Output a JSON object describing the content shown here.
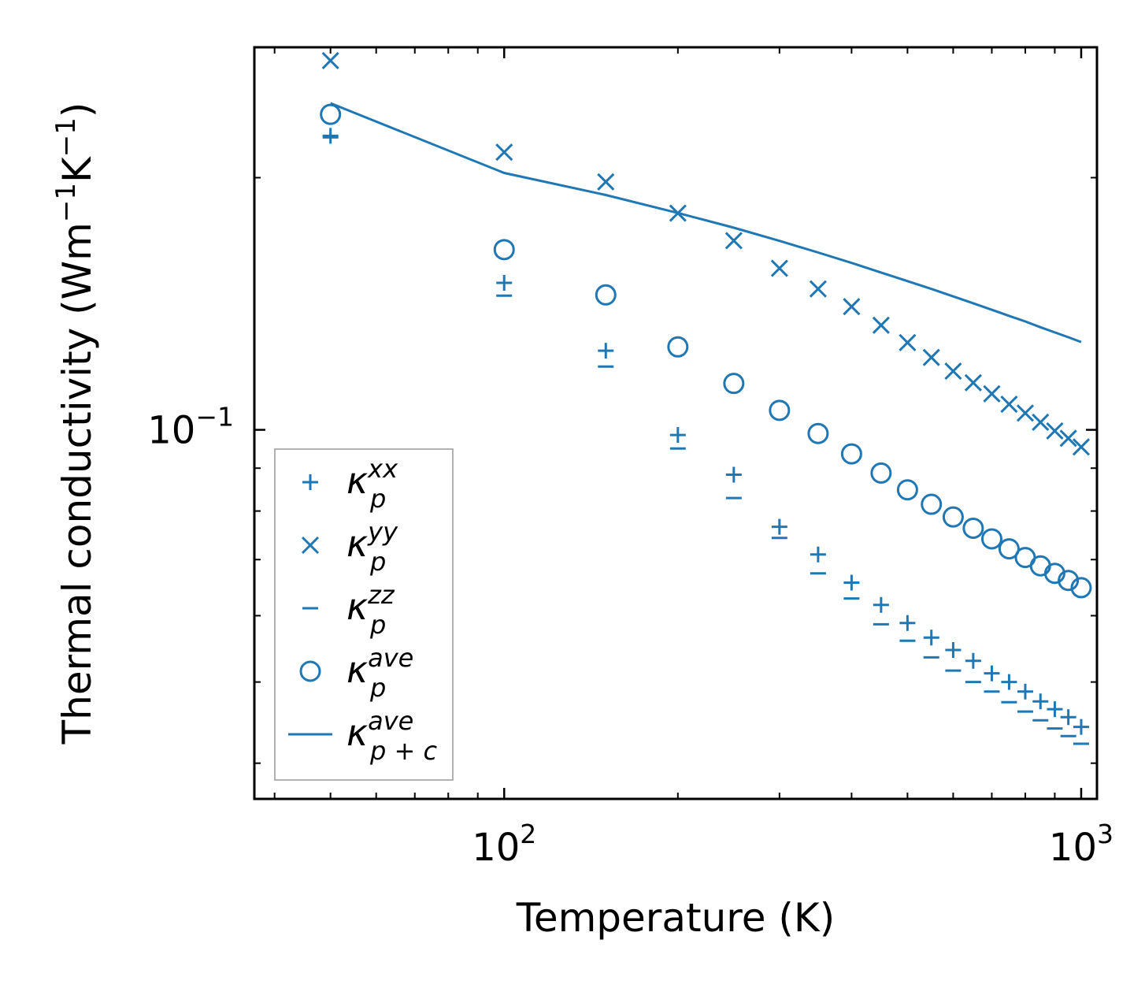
{
  "chart_data": {
    "type": "scatter",
    "title": "",
    "xlabel": "Temperature (K)",
    "ylabel_main": "Thermal conductivity (Wm",
    "ylabel_sup1": "−1",
    "ylabel_mid": "K",
    "ylabel_sup2": "−1",
    "ylabel_end": ")",
    "xscale": "log",
    "yscale": "log",
    "xlim": [
      36.9,
      1065
    ],
    "ylim": [
      0.03626,
      0.2862
    ],
    "xticks": [
      {
        "value": 100,
        "base": "10",
        "exp": "2"
      },
      {
        "value": 1000,
        "base": "10",
        "exp": "3"
      }
    ],
    "yticks": [
      {
        "value": 0.1,
        "base": "10",
        "exp": "−1"
      }
    ],
    "legend_position": "lower-left",
    "x": [
      50,
      100,
      150,
      200,
      250,
      300,
      350,
      400,
      450,
      500,
      550,
      600,
      650,
      700,
      750,
      800,
      850,
      900,
      950,
      1000
    ],
    "series": [
      {
        "name": "κ_p^xx",
        "label_base": "κ",
        "label_sub": "p",
        "label_sup": "xx",
        "marker": "plus",
        "color": "#1f77b4",
        "values": [
          0.2244,
          0.1498,
          0.1243,
          0.0986,
          0.0884,
          0.0766,
          0.071,
          0.0657,
          0.0618,
          0.0588,
          0.0565,
          0.0546,
          0.053,
          0.0512,
          0.05,
          0.0487,
          0.0474,
          0.0464,
          0.0454,
          0.0442
        ]
      },
      {
        "name": "κ_p^yy",
        "label_base": "κ",
        "label_sub": "p",
        "label_sup": "yy",
        "marker": "x",
        "color": "#1f77b4",
        "values": [
          0.2759,
          0.2145,
          0.1977,
          0.1814,
          0.1682,
          0.1559,
          0.1473,
          0.1403,
          0.1333,
          0.1271,
          0.122,
          0.1175,
          0.1138,
          0.1104,
          0.1073,
          0.1047,
          0.1021,
          0.0997,
          0.0977,
          0.0954
        ]
      },
      {
        "name": "κ_p^zz",
        "label_base": "κ",
        "label_sub": "p",
        "label_sup": "zz",
        "marker": "hline",
        "color": "#1f77b4",
        "values": [
          0.2234,
          0.1446,
          0.119,
          0.095,
          0.0829,
          0.0743,
          0.0674,
          0.0629,
          0.0586,
          0.056,
          0.0535,
          0.0516,
          0.05,
          0.0487,
          0.0473,
          0.0461,
          0.045,
          0.044,
          0.0431,
          0.0422
        ]
      },
      {
        "name": "κ_p^ave",
        "label_base": "κ",
        "label_sub": "p",
        "label_sup": "ave",
        "marker": "circle",
        "color": "#1f77b4",
        "values": [
          0.238,
          0.1641,
          0.1449,
          0.1256,
          0.1136,
          0.1055,
          0.099,
          0.0936,
          0.0888,
          0.0848,
          0.0815,
          0.0787,
          0.0763,
          0.0741,
          0.0721,
          0.0704,
          0.0688,
          0.0674,
          0.0661,
          0.0648
        ]
      },
      {
        "name": "κ_p+c^ave",
        "label_base": "κ",
        "label_sub": "p + c",
        "label_sup": "ave",
        "marker": "line",
        "color": "#1f77b4",
        "x": [
          50,
          100,
          150,
          200,
          250,
          300,
          350,
          400,
          450,
          500,
          550,
          600,
          650,
          700,
          750,
          800,
          850,
          900,
          950,
          1000
        ],
        "values": [
          0.2454,
          0.2026,
          0.1907,
          0.1815,
          0.1743,
          0.1681,
          0.1628,
          0.1582,
          0.1541,
          0.1505,
          0.1473,
          0.1443,
          0.1416,
          0.1391,
          0.1368,
          0.1347,
          0.1326,
          0.1307,
          0.129,
          0.1273
        ]
      }
    ]
  }
}
